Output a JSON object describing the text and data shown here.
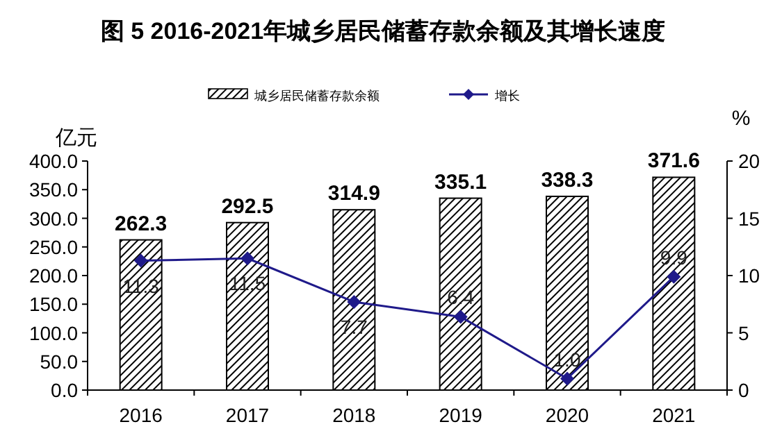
{
  "chart_data": {
    "type": "bar",
    "title": "图 5 2016-2021年城乡居民储蓄存款余额及其增长速度",
    "categories": [
      "2016",
      "2017",
      "2018",
      "2019",
      "2020",
      "2021"
    ],
    "series": [
      {
        "name": "城乡居民储蓄存款余额",
        "color": "#000000",
        "values": [
          262.3,
          292.5,
          314.9,
          335.1,
          338.3,
          371.6
        ]
      },
      {
        "name": "增长",
        "type": "line",
        "axis": "y2",
        "color": "#1f1a8a",
        "marker": "diamond",
        "values": [
          11.3,
          11.5,
          7.7,
          6.4,
          1.0,
          9.9
        ],
        "value_labels": [
          "11.3",
          "11.5",
          "7.7",
          "6.4",
          "1.0",
          "9.9"
        ]
      }
    ],
    "data_labels": true,
    "ylabel": "亿元",
    "y2label": "%",
    "ylim": [
      0,
      400
    ],
    "yticks": [
      {
        "value": 0,
        "label": "0.0"
      },
      {
        "value": 50,
        "label": "50.0"
      },
      {
        "value": 100,
        "label": "100.0"
      },
      {
        "value": 150,
        "label": "150.0"
      },
      {
        "value": 200,
        "label": "200.0"
      },
      {
        "value": 250,
        "label": "250.0"
      },
      {
        "value": 300,
        "label": "300.0"
      },
      {
        "value": 350,
        "label": "350.0"
      },
      {
        "value": 400,
        "label": "400.0"
      }
    ],
    "y2lim": [
      0,
      20
    ],
    "y2ticks": [
      0,
      5,
      10,
      15,
      20
    ],
    "legend": "top"
  }
}
